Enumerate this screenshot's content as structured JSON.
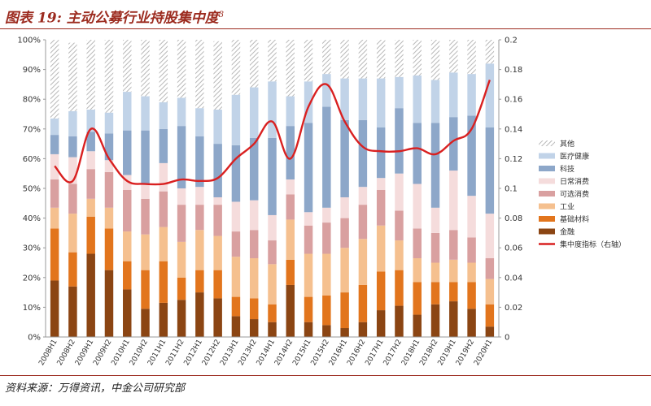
{
  "header": {
    "title_main": "图表 19:  主动公募行业持股集中度",
    "title_sup": "3"
  },
  "footer": {
    "source": "资料来源：万得资讯，中金公司研究部"
  },
  "chart_data": {
    "type": "bar",
    "stacked": true,
    "title": "主动公募行业持股集中度",
    "categories": [
      "2008H1",
      "2008H2",
      "2009H1",
      "2009H2",
      "2010H1",
      "2010H2",
      "2011H1",
      "2011H2",
      "2012H1",
      "2012H2",
      "2013H1",
      "2013H2",
      "2014H1",
      "2014H2",
      "2015H1",
      "2015H2",
      "2016H1",
      "2016H2",
      "2017H1",
      "2017H2",
      "2018H1",
      "2018H2",
      "2019H1",
      "2019H2",
      "2020H1"
    ],
    "ylim_left": [
      0,
      100
    ],
    "yticks_left": [
      "0%",
      "10%",
      "20%",
      "30%",
      "40%",
      "50%",
      "60%",
      "70%",
      "80%",
      "90%",
      "100%"
    ],
    "ylim_right": [
      0,
      0.2
    ],
    "yticks_right": [
      "0",
      "0.02",
      "0.04",
      "0.06",
      "0.08",
      "0.1",
      "0.12",
      "0.14",
      "0.16",
      "0.18",
      "0.2"
    ],
    "series": [
      {
        "name": "金融",
        "color": "#8b4513",
        "values": [
          19,
          17,
          28,
          22.5,
          16,
          9.5,
          11.5,
          12.5,
          15,
          13,
          7,
          6,
          5,
          17.5,
          5,
          4,
          3,
          5,
          9,
          10.5,
          7.5,
          11,
          12,
          9.5,
          3.5
        ]
      },
      {
        "name": "基础材料",
        "color": "#e2751d",
        "values": [
          17.5,
          11.5,
          12.5,
          14,
          9.5,
          13,
          14,
          7.5,
          7.5,
          9.5,
          6.5,
          7,
          6,
          8.5,
          8.5,
          10,
          12,
          12.5,
          13,
          12,
          11,
          7.5,
          6.5,
          9,
          7.5
        ]
      },
      {
        "name": "工业",
        "color": "#f5c08f",
        "values": [
          7,
          13,
          6,
          7,
          10,
          12,
          11.5,
          12,
          13.5,
          11.5,
          13.5,
          13.5,
          13.5,
          13.5,
          14.5,
          14,
          15,
          15.5,
          15.5,
          10,
          8,
          6.5,
          7.5,
          6.5,
          8.5
        ]
      },
      {
        "name": "可选消费",
        "color": "#d9a0a0",
        "values": [
          9.5,
          10,
          10,
          12,
          14,
          12,
          12,
          12.5,
          8.5,
          10.5,
          8.5,
          9.5,
          8,
          8.5,
          9.5,
          10.5,
          10,
          11.5,
          12,
          10,
          10,
          10,
          10,
          8.5,
          7
        ]
      },
      {
        "name": "日常消费",
        "color": "#f5dcdc",
        "values": [
          8.5,
          9,
          6,
          4,
          5,
          5,
          9.5,
          5.5,
          6,
          2.5,
          10,
          10,
          8.5,
          5,
          4.5,
          5,
          7,
          6,
          4,
          12.5,
          15,
          8.5,
          20,
          14,
          15
        ]
      },
      {
        "name": "科技",
        "color": "#8da7c9",
        "values": [
          6.5,
          7,
          6.5,
          9,
          15,
          18,
          11.5,
          21,
          17,
          18,
          19,
          21,
          26,
          18,
          30,
          34,
          26,
          22.5,
          17,
          22,
          20.5,
          28.5,
          18,
          27,
          29
        ]
      },
      {
        "name": "医疗健康",
        "color": "#c1d3e8",
        "values": [
          5.5,
          8.5,
          7.5,
          7,
          13,
          11.5,
          9,
          9.5,
          9.5,
          11.5,
          17,
          17,
          19,
          10,
          14,
          11,
          14,
          14,
          16.5,
          10.5,
          16,
          14.5,
          15,
          14,
          21.5
        ]
      },
      {
        "name": "其他",
        "color": "#d8d8d8",
        "pattern": "hatch",
        "values": [
          26.5,
          23,
          23.5,
          24.5,
          17.5,
          19,
          21,
          19.5,
          23,
          23,
          18.5,
          16,
          14,
          19,
          14,
          11.5,
          13,
          13,
          13,
          12.5,
          12,
          13.5,
          11,
          11.5,
          8
        ]
      }
    ],
    "line": {
      "name": "集中度指标（右轴）",
      "color": "#d92020",
      "axis": "right",
      "values": [
        0.115,
        0.105,
        0.14,
        0.12,
        0.105,
        0.103,
        0.103,
        0.106,
        0.105,
        0.107,
        0.12,
        0.13,
        0.145,
        0.12,
        0.155,
        0.17,
        0.145,
        0.128,
        0.125,
        0.125,
        0.127,
        0.123,
        0.132,
        0.14,
        0.173
      ]
    },
    "legend_position": "right"
  }
}
